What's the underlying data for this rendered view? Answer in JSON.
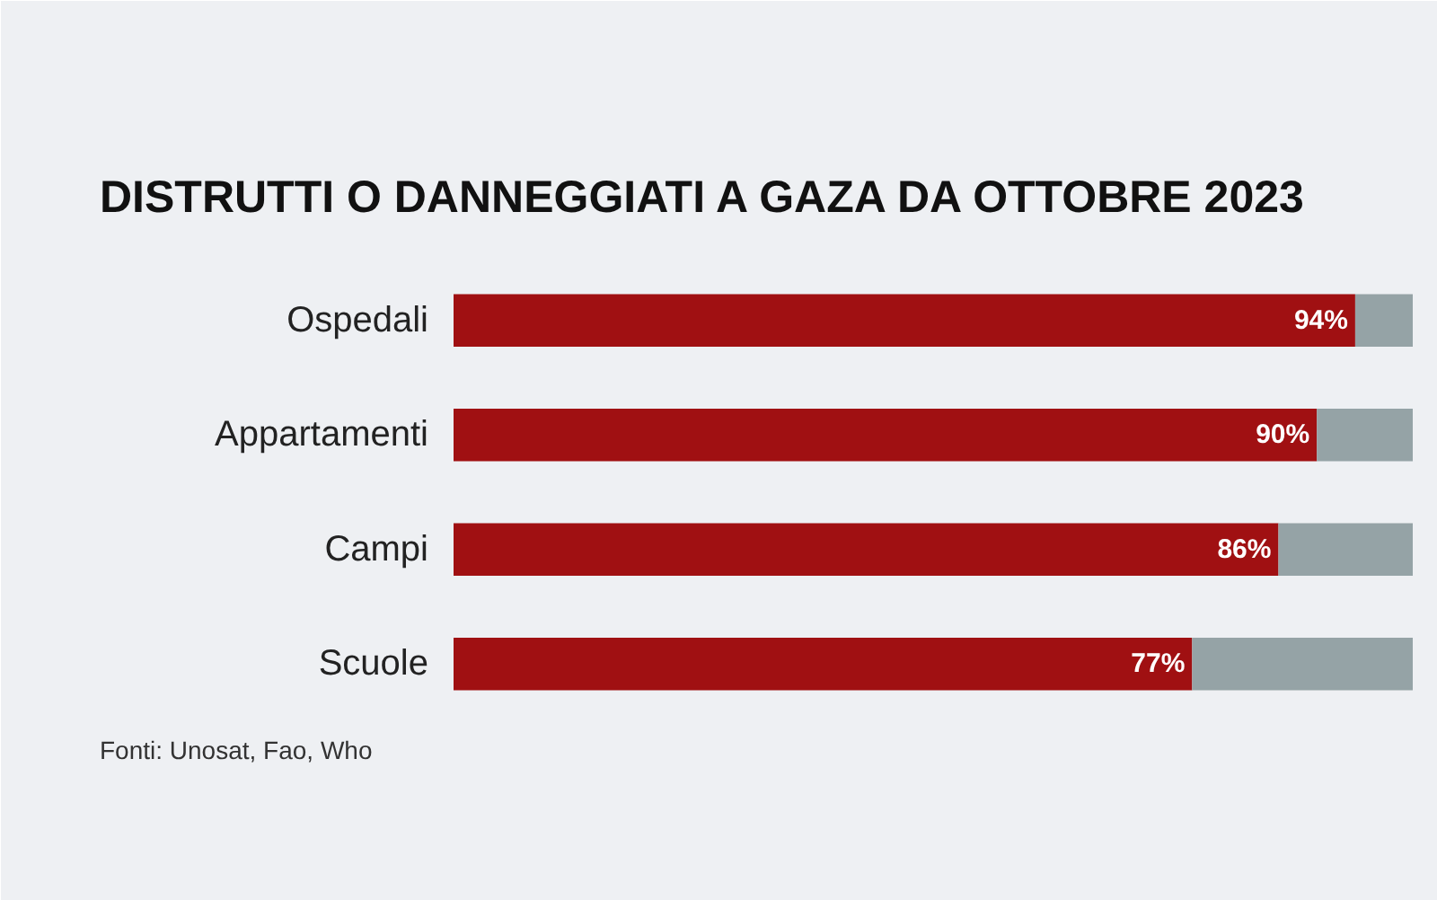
{
  "chart_data": {
    "type": "bar",
    "orientation": "horizontal",
    "stacked": true,
    "title": "DISTRUTTI O DANNEGGIATI A GAZA DA OTTOBRE 2023",
    "categories": [
      "Ospedali",
      "Appartamenti",
      "Campi",
      "Scuole"
    ],
    "series": [
      {
        "color": "#a01012",
        "values": [
          94,
          90,
          86,
          77
        ],
        "value_labels": [
          "94%",
          "90%",
          "86%",
          "77%"
        ]
      },
      {
        "color": "#95a3a6",
        "values": [
          6,
          10,
          14,
          23
        ]
      }
    ],
    "xlim": [
      0,
      100
    ],
    "tick_labels": "y",
    "grid": false,
    "annotations": [
      "Fonti: Unosat, Fao, Who"
    ]
  }
}
